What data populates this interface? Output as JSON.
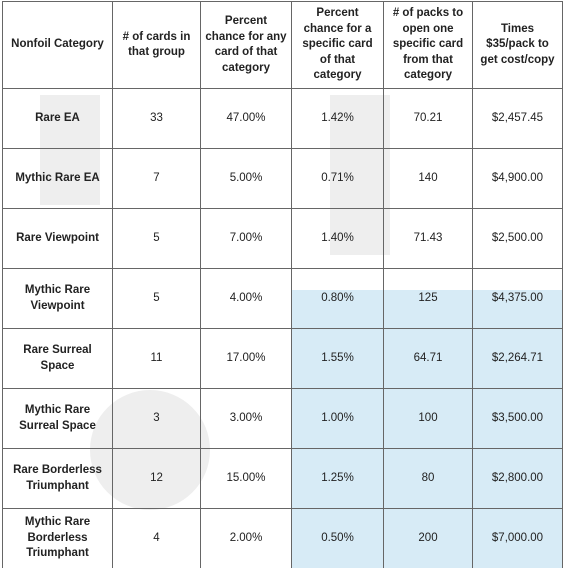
{
  "table": {
    "header": [
      "Nonfoil Category",
      "# of cards in that group",
      "Percent chance for any card of that category",
      "Percent chance for a specific card of that category",
      "# of packs to open one specific card from that category",
      "Times $35/pack to get cost/copy"
    ],
    "rows": [
      [
        "Rare EA",
        "33",
        "47.00%",
        "1.42%",
        "70.21",
        "$2,457.45"
      ],
      [
        "Mythic Rare EA",
        "7",
        "5.00%",
        "0.71%",
        "140",
        "$4,900.00"
      ],
      [
        "Rare Viewpoint",
        "5",
        "7.00%",
        "1.40%",
        "71.43",
        "$2,500.00"
      ],
      [
        "Mythic Rare Viewpoint",
        "5",
        "4.00%",
        "0.80%",
        "125",
        "$4,375.00"
      ],
      [
        "Rare Surreal Space",
        "11",
        "17.00%",
        "1.55%",
        "64.71",
        "$2,264.71"
      ],
      [
        "Mythic Rare Surreal Space",
        "3",
        "3.00%",
        "1.00%",
        "100",
        "$3,500.00"
      ],
      [
        "Rare Borderless Triumphant",
        "12",
        "15.00%",
        "1.25%",
        "80",
        "$2,800.00"
      ],
      [
        "Mythic Rare Borderless Triumphant",
        "4",
        "2.00%",
        "0.50%",
        "200",
        "$7,000.00"
      ]
    ]
  }
}
